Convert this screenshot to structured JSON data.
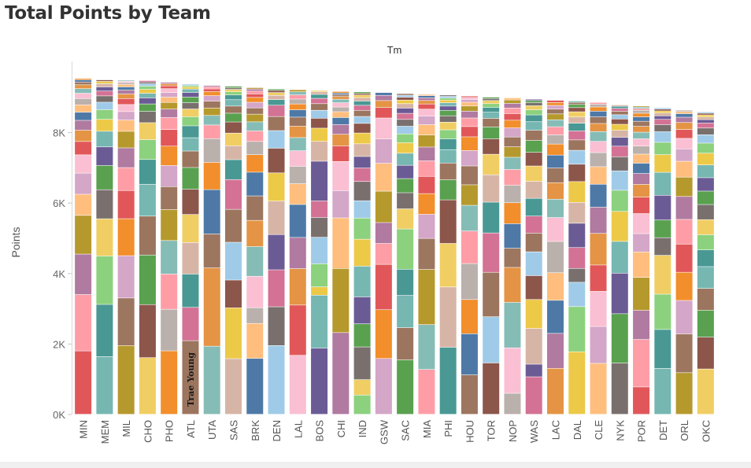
{
  "page": {
    "title": "Total Points by Team",
    "column_header": "Tm",
    "y_title": "Points"
  },
  "chart_data": {
    "type": "bar",
    "stacked": true,
    "title": "Total Points by Team",
    "xlabel": "Tm",
    "ylabel": "Points",
    "ylim": [
      0,
      9700
    ],
    "yticks": [
      0,
      2000,
      4000,
      6000,
      8000
    ],
    "ytick_labels": [
      "0K",
      "2K",
      "4K",
      "6K",
      "8K"
    ],
    "grid": false,
    "legend": "none",
    "categories": [
      "MIN",
      "MEM",
      "MIL",
      "CHO",
      "PHO",
      "ATL",
      "UTA",
      "SAS",
      "BRK",
      "DEN",
      "LAL",
      "BOS",
      "CHI",
      "IND",
      "GSW",
      "SAC",
      "MIA",
      "PHI",
      "HOU",
      "TOR",
      "NOP",
      "WAS",
      "LAC",
      "DAL",
      "CLE",
      "NYK",
      "POR",
      "DET",
      "ORL",
      "OKC"
    ],
    "totals": [
      9530,
      9490,
      9480,
      9470,
      9420,
      9370,
      9330,
      9310,
      9270,
      9230,
      9210,
      9190,
      9160,
      9150,
      9130,
      9100,
      9080,
      9060,
      9030,
      9000,
      8980,
      8940,
      8910,
      8890,
      8850,
      8780,
      8750,
      8700,
      8630,
      8580
    ],
    "segments": [
      [
        1800,
        1600,
        1150,
        1100,
        600,
        600,
        520,
        380,
        320,
        280,
        230,
        210,
        180,
        150,
        130,
        110,
        80,
        60,
        40
      ],
      [
        1550,
        1400,
        1300,
        1000,
        780,
        650,
        500,
        420,
        320,
        260,
        200,
        170,
        130,
        110,
        90,
        60,
        40
      ],
      [
        1950,
        1350,
        1200,
        1050,
        800,
        650,
        560,
        470,
        320,
        240,
        200,
        170,
        130,
        110,
        90,
        70,
        50,
        40,
        30
      ],
      [
        1600,
        1500,
        1400,
        1100,
        900,
        700,
        560,
        480,
        320,
        210,
        170,
        130,
        110,
        90,
        70,
        50,
        40
      ],
      [
        1800,
        1180,
        1000,
        950,
        880,
        650,
        600,
        550,
        470,
        340,
        240,
        190,
        150,
        130,
        110,
        80,
        60,
        40
      ],
      [
        2100,
        950,
        950,
        900,
        800,
        720,
        620,
        470,
        380,
        340,
        260,
        220,
        180,
        160,
        130,
        100,
        60,
        40,
        40
      ],
      [
        2000,
        2300,
        1000,
        1300,
        800,
        700,
        400,
        280,
        220,
        200,
        160,
        120,
        80,
        60,
        40
      ],
      [
        1400,
        1280,
        700,
        950,
        830,
        750,
        500,
        350,
        320,
        280,
        220,
        180,
        160,
        120,
        80,
        60,
        40,
        40
      ],
      [
        1600,
        1000,
        450,
        900,
        850,
        750,
        700,
        680,
        500,
        380,
        300,
        260,
        220,
        180,
        160,
        140,
        100,
        80,
        60,
        40
      ],
      [
        1950,
        1100,
        1050,
        1000,
        950,
        800,
        700,
        500,
        400,
        320,
        160,
        120,
        80,
        60,
        40
      ],
      [
        1700,
        1450,
        1050,
        900,
        950,
        600,
        500,
        450,
        380,
        330,
        260,
        210,
        170,
        140,
        120,
        90,
        60
      ],
      [
        2000,
        1600,
        250,
        700,
        800,
        600,
        500,
        1200,
        600,
        400,
        300,
        240,
        200,
        160,
        120,
        80,
        40
      ],
      [
        2100,
        1650,
        1300,
        700,
        750,
        400,
        300,
        250,
        180,
        150,
        120,
        110,
        90,
        70,
        50,
        40,
        40
      ],
      [
        500,
        400,
        850,
        600,
        700,
        800,
        700,
        550,
        450,
        500,
        350,
        300,
        330,
        280,
        250,
        180,
        160,
        130,
        110,
        90,
        70,
        40,
        40
      ],
      [
        1600,
        1400,
        1300,
        600,
        600,
        900,
        800,
        700,
        600,
        300,
        200,
        150,
        80
      ],
      [
        1350,
        800,
        800,
        650,
        1000,
        500,
        400,
        350,
        330,
        300,
        260,
        220,
        190,
        170,
        150,
        130,
        110,
        90,
        70,
        50,
        40
      ],
      [
        1300,
        1300,
        1600,
        900,
        700,
        600,
        500,
        450,
        400,
        350,
        300,
        250,
        200,
        150,
        100,
        80,
        60,
        40
      ],
      [
        2000,
        1800,
        1300,
        1300,
        600,
        500,
        400,
        320,
        270,
        230,
        190,
        160,
        130,
        100,
        80,
        60,
        50,
        40
      ],
      [
        1150,
        1200,
        1000,
        1050,
        950,
        750,
        600,
        550,
        450,
        400,
        300,
        250,
        200,
        150,
        110,
        80,
        60,
        40
      ],
      [
        1500,
        1350,
        1300,
        1150,
        900,
        800,
        600,
        450,
        350,
        250,
        180,
        140,
        110,
        90,
        60,
        40
      ],
      [
        600,
        1300,
        1300,
        1000,
        550,
        700,
        600,
        500,
        450,
        350,
        300,
        280,
        260,
        220,
        190,
        160,
        130,
        100,
        60
      ],
      [
        1100,
        370,
        1050,
        850,
        700,
        700,
        550,
        500,
        520,
        500,
        450,
        400,
        350,
        300,
        250,
        200,
        150,
        120,
        90,
        60,
        40
      ],
      [
        1250,
        950,
        900,
        750,
        850,
        650,
        500,
        450,
        400,
        350,
        300,
        250,
        220,
        190,
        160,
        130,
        100,
        80,
        60
      ],
      [
        1800,
        1300,
        700,
        400,
        600,
        700,
        600,
        600,
        500,
        400,
        300,
        260,
        220,
        180,
        150,
        120,
        90,
        60,
        40
      ],
      [
        1450,
        1050,
        1000,
        750,
        900,
        750,
        650,
        500,
        400,
        320,
        280,
        230,
        190,
        160,
        120,
        80,
        50
      ],
      [
        1450,
        1400,
        1150,
        900,
        850,
        600,
        550,
        400,
        300,
        250,
        200,
        170,
        150,
        120,
        100,
        80,
        60,
        40
      ],
      [
        750,
        1300,
        800,
        900,
        700,
        500,
        550,
        450,
        350,
        300,
        280,
        250,
        220,
        200,
        180,
        160,
        140,
        120,
        100,
        80,
        50,
        40,
        30
      ],
      [
        1300,
        1100,
        1000,
        1100,
        500,
        500,
        700,
        650,
        500,
        350,
        300,
        200,
        150,
        100,
        80,
        60,
        50,
        40
      ],
      [
        1180,
        1100,
        950,
        800,
        800,
        700,
        650,
        550,
        450,
        350,
        300,
        250,
        200,
        150,
        100,
        60,
        40
      ],
      [
        1350,
        950,
        800,
        650,
        650,
        500,
        450,
        450,
        450,
        400,
        400,
        380,
        350,
        300,
        250,
        200,
        150,
        100,
        80,
        60,
        50,
        40
      ]
    ],
    "colors": [
      "#e15759",
      "#59a14f",
      "#f28e2b",
      "#8c564b",
      "#4e79a7",
      "#edc948",
      "#b07aa1",
      "#76b7b2",
      "#ff9da7",
      "#9c755f",
      "#bab0ac",
      "#a0cbe8",
      "#ffbe7d",
      "#8cd17d",
      "#b6992d",
      "#499894",
      "#86bcb6",
      "#d37295",
      "#fabfd2",
      "#79706e",
      "#d4a6c8",
      "#f1ce63",
      "#9d7660",
      "#d7b5a6",
      "#e49444",
      "#6b5b95"
    ],
    "annotations": [
      {
        "team": "ATL",
        "segment": 0,
        "label": "Trae Young"
      }
    ]
  }
}
